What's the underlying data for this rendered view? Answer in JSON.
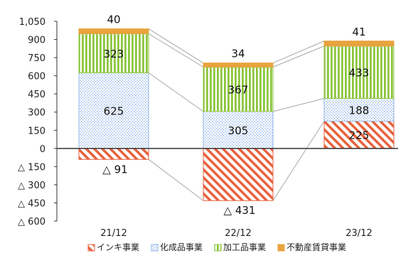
{
  "chart_data": {
    "type": "bar",
    "stacked": true,
    "title": "",
    "xlabel": "",
    "ylabel": "",
    "ylim": [
      -600,
      1050
    ],
    "y_ticks": [
      {
        "value": 1050,
        "label": "1,050"
      },
      {
        "value": 900,
        "label": "900"
      },
      {
        "value": 750,
        "label": "750"
      },
      {
        "value": 600,
        "label": "600"
      },
      {
        "value": 450,
        "label": "450"
      },
      {
        "value": 300,
        "label": "300"
      },
      {
        "value": 150,
        "label": "150"
      },
      {
        "value": 0,
        "label": "0"
      },
      {
        "value": -150,
        "label": "△ 150"
      },
      {
        "value": -300,
        "label": "△ 300"
      },
      {
        "value": -450,
        "label": "△ 450"
      },
      {
        "value": -600,
        "label": "△ 600"
      }
    ],
    "categories": [
      "21/12",
      "22/12",
      "23/12"
    ],
    "series": [
      {
        "name": "インキ事業",
        "color": "#e8613c",
        "pattern": "diagonal-stripes",
        "values": [
          -91,
          -431,
          225
        ],
        "labels": [
          "△ 91",
          "△ 431",
          "225"
        ]
      },
      {
        "name": "化成品事業",
        "color": "#5b8fd6",
        "pattern": "dots",
        "values": [
          625,
          305,
          188
        ],
        "labels": [
          "625",
          "305",
          "188"
        ]
      },
      {
        "name": "加工品事業",
        "color": "#8dc63f",
        "pattern": "vertical-stripes",
        "values": [
          323,
          367,
          433
        ],
        "labels": [
          "323",
          "367",
          "433"
        ]
      },
      {
        "name": "不動産賃貸事業",
        "color": "#e8a33c",
        "pattern": "solid",
        "values": [
          40,
          34,
          41
        ],
        "labels": [
          "40",
          "34",
          "41"
        ]
      }
    ],
    "legend_position": "bottom",
    "connector_lines": true,
    "grid": false
  }
}
